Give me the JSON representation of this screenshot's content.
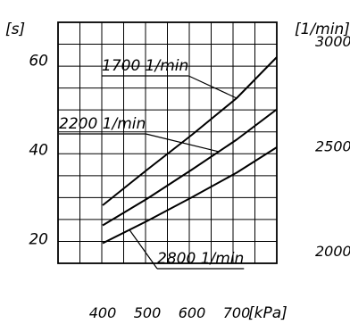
{
  "chart_data": {
    "type": "line",
    "ylabel": "[s]",
    "xlabel": "[kPa]",
    "y2label": "[1/min]",
    "x_ticks": [
      400,
      500,
      600,
      700
    ],
    "y_ticks": [
      20,
      40,
      60
    ],
    "y2_ticks": [
      2000,
      2500,
      3000
    ],
    "xlim": [
      300,
      790
    ],
    "ylim": [
      14.5,
      68.5
    ],
    "y2lim": [
      1940,
      3090
    ],
    "grid": true,
    "series": [
      {
        "name": "1700 1/min",
        "x": [
          400,
          500,
          600,
          700,
          790
        ],
        "y": [
          27.5,
          35.5,
          43.3,
          51.5,
          60.7
        ]
      },
      {
        "name": "2200 1/min",
        "x": [
          400,
          500,
          600,
          700,
          790
        ],
        "y": [
          23.0,
          29.0,
          35.5,
          42.2,
          49.0
        ]
      },
      {
        "name": "2800 1/min",
        "x": [
          400,
          500,
          600,
          700,
          790
        ],
        "y": [
          19.0,
          24.0,
          29.3,
          34.8,
          40.5
        ]
      }
    ]
  }
}
